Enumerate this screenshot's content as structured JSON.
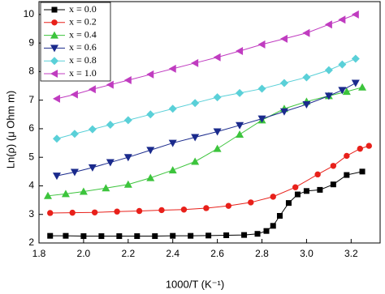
{
  "chart_data": {
    "type": "line",
    "xlabel": "1000/T (K⁻¹)",
    "ylabel": "Ln(ρ) (μ Ohm m)",
    "xlim": [
      1.8,
      3.33
    ],
    "ylim": [
      2,
      10.45
    ],
    "xticks": [
      1.8,
      {
        "value": 2,
        "label": "2.0"
      },
      2.2,
      2.4,
      2.6,
      2.8,
      {
        "value": 3,
        "label": "3.0"
      },
      3.2
    ],
    "yticks": [
      2,
      3,
      4,
      5,
      6,
      7,
      8,
      9,
      10
    ],
    "legend": "upper left",
    "series": [
      {
        "name": "x = 0.0",
        "color": "#000000",
        "marker": "square",
        "x": [
          1.85,
          1.92,
          2.0,
          2.08,
          2.16,
          2.24,
          2.32,
          2.4,
          2.48,
          2.56,
          2.64,
          2.72,
          2.78,
          2.82,
          2.85,
          2.88,
          2.92,
          2.96,
          3.0,
          3.06,
          3.12,
          3.18,
          3.25
        ],
        "values": [
          2.25,
          2.25,
          2.24,
          2.24,
          2.24,
          2.24,
          2.24,
          2.25,
          2.25,
          2.26,
          2.27,
          2.28,
          2.32,
          2.42,
          2.6,
          2.95,
          3.4,
          3.7,
          3.82,
          3.86,
          4.05,
          4.38,
          4.5
        ]
      },
      {
        "name": "x = 0.2",
        "color": "#e8201a",
        "marker": "circle",
        "x": [
          1.85,
          1.95,
          2.05,
          2.15,
          2.25,
          2.35,
          2.45,
          2.55,
          2.65,
          2.75,
          2.85,
          2.95,
          3.05,
          3.12,
          3.18,
          3.24,
          3.28
        ],
        "values": [
          3.05,
          3.06,
          3.07,
          3.1,
          3.12,
          3.15,
          3.17,
          3.22,
          3.3,
          3.42,
          3.62,
          3.95,
          4.4,
          4.7,
          5.05,
          5.3,
          5.4
        ]
      },
      {
        "name": "x = 0.4",
        "color": "#3cc43c",
        "marker": "triangle-up",
        "x": [
          1.84,
          1.92,
          2.0,
          2.1,
          2.2,
          2.3,
          2.4,
          2.5,
          2.6,
          2.7,
          2.8,
          2.9,
          3.0,
          3.1,
          3.18,
          3.25
        ],
        "values": [
          3.65,
          3.72,
          3.8,
          3.92,
          4.05,
          4.28,
          4.55,
          4.85,
          5.3,
          5.8,
          6.3,
          6.7,
          6.95,
          7.15,
          7.3,
          7.45
        ]
      },
      {
        "name": "x = 0.6",
        "color": "#1a2a8c",
        "marker": "triangle-down",
        "x": [
          1.88,
          1.96,
          2.04,
          2.12,
          2.2,
          2.3,
          2.4,
          2.5,
          2.6,
          2.7,
          2.8,
          2.9,
          3.0,
          3.1,
          3.16,
          3.22
        ],
        "values": [
          4.35,
          4.48,
          4.64,
          4.82,
          5.0,
          5.25,
          5.5,
          5.7,
          5.9,
          6.12,
          6.35,
          6.6,
          6.85,
          7.15,
          7.35,
          7.6
        ]
      },
      {
        "name": "x = 0.8",
        "color": "#5ad0d8",
        "marker": "diamond",
        "x": [
          1.88,
          1.96,
          2.04,
          2.12,
          2.2,
          2.3,
          2.4,
          2.5,
          2.6,
          2.7,
          2.8,
          2.9,
          3.0,
          3.1,
          3.16,
          3.22
        ],
        "values": [
          5.65,
          5.82,
          5.98,
          6.14,
          6.3,
          6.5,
          6.7,
          6.9,
          7.1,
          7.25,
          7.4,
          7.6,
          7.8,
          8.05,
          8.25,
          8.45
        ]
      },
      {
        "name": "x = 1.0",
        "color": "#c03cc0",
        "marker": "triangle-left",
        "x": [
          1.88,
          1.96,
          2.04,
          2.12,
          2.2,
          2.3,
          2.4,
          2.5,
          2.6,
          2.7,
          2.8,
          2.9,
          3.0,
          3.1,
          3.16,
          3.22
        ],
        "values": [
          7.05,
          7.2,
          7.38,
          7.54,
          7.7,
          7.9,
          8.1,
          8.3,
          8.5,
          8.72,
          8.95,
          9.15,
          9.35,
          9.65,
          9.82,
          10.0
        ]
      }
    ]
  }
}
